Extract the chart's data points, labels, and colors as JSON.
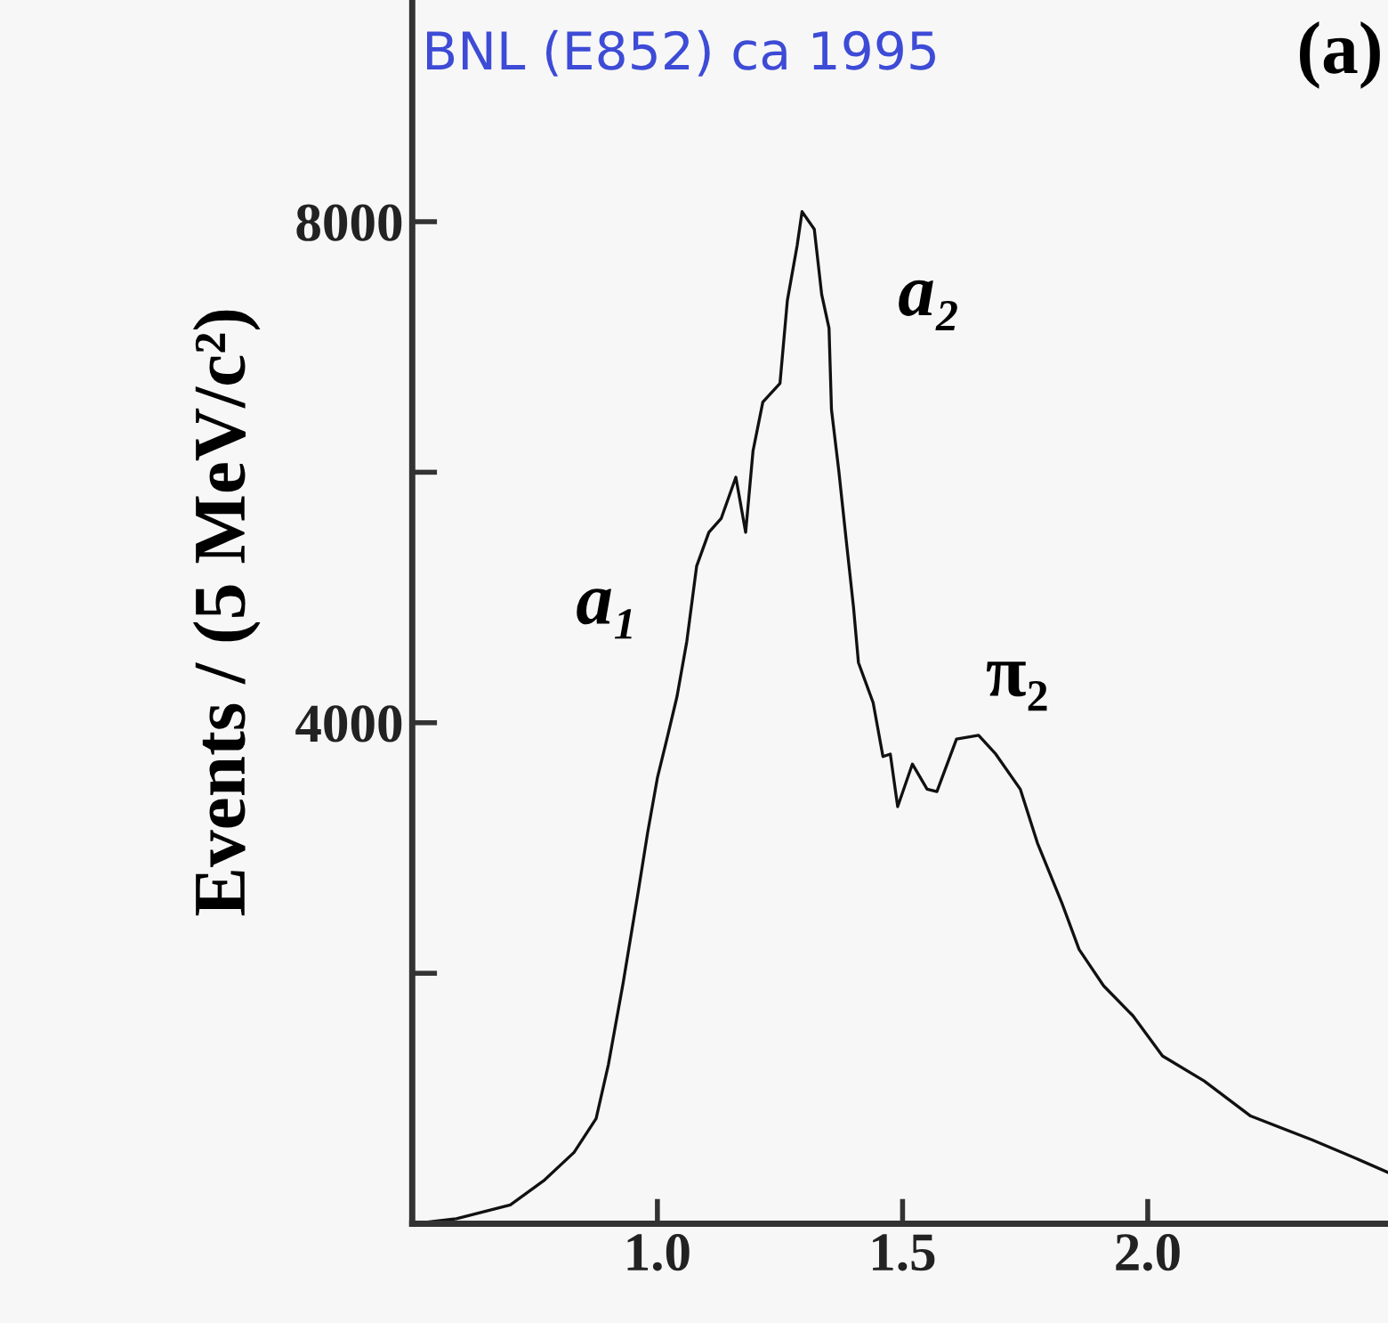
{
  "chart_data": {
    "type": "line",
    "title": "BNL (E852) ca 1995",
    "ylabel": "Events / (5 MeV/c²)",
    "annotations": [
      "(a)",
      "a₁",
      "a₂",
      "π₂"
    ],
    "series": [
      {
        "color": "#111111",
        "x": [
          0.5,
          0.59,
          0.7,
          0.77,
          0.83,
          0.875,
          0.9,
          0.93,
          0.96,
          0.98,
          1.0,
          1.02,
          1.04,
          1.06,
          1.08,
          1.105,
          1.13,
          1.16,
          1.18,
          1.195,
          1.215,
          1.25,
          1.265,
          1.285,
          1.295,
          1.32,
          1.335,
          1.35,
          1.355,
          1.37,
          1.385,
          1.4,
          1.41,
          1.44,
          1.46,
          1.475,
          1.49,
          1.52,
          1.55,
          1.57,
          1.61,
          1.655,
          1.69,
          1.74,
          1.775,
          1.825,
          1.86,
          1.91,
          1.97,
          2.03,
          2.115,
          2.21,
          2.335,
          2.42,
          2.49
        ],
        "values": [
          0,
          40,
          150,
          350,
          570,
          840,
          1270,
          1920,
          2630,
          3120,
          3560,
          3880,
          4210,
          4650,
          5250,
          5520,
          5630,
          5960,
          5520,
          6170,
          6560,
          6710,
          7370,
          7810,
          8080,
          7940,
          7420,
          7150,
          6500,
          6010,
          5460,
          4920,
          4480,
          4160,
          3730,
          3750,
          3330,
          3670,
          3470,
          3450,
          3870,
          3900,
          3750,
          3470,
          3040,
          2560,
          2190,
          1900,
          1660,
          1340,
          1140,
          860,
          670,
          530,
          410
        ]
      }
    ],
    "xlim": [
      0.5,
      2.49
    ],
    "ylim": [
      0,
      9770
    ],
    "xticks": [
      {
        "value": 1.0,
        "label": "1.0"
      },
      {
        "value": 1.5,
        "label": "1.5"
      },
      {
        "value": 2.0,
        "label": "2.0"
      }
    ],
    "yticks": [
      {
        "value": 2000,
        "label": null
      },
      4000,
      {
        "value": 6000,
        "label": null
      },
      8000
    ],
    "grid": false,
    "legend": false,
    "marker": "none",
    "line_style": "solid"
  }
}
